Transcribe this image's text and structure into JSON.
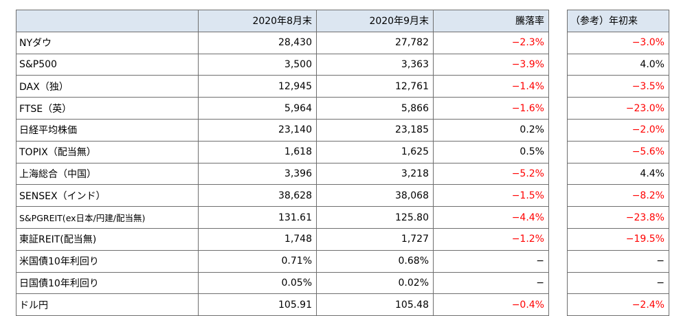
{
  "header": {
    "blank": "",
    "col1": "2020年8月末",
    "col2": "2020年9月末",
    "col3": "騰落率",
    "side": "（参考）年初来"
  },
  "rows": [
    {
      "name": "NYダウ",
      "aug": "28,430",
      "sep": "27,782",
      "change": "−2.3%",
      "ytd": "−3.0%"
    },
    {
      "name": "S&P500",
      "aug": "3,500",
      "sep": "3,363",
      "change": "−3.9%",
      "ytd": "4.0%"
    },
    {
      "name": "DAX（独）",
      "aug": "12,945",
      "sep": "12,761",
      "change": "−1.4%",
      "ytd": "−3.5%"
    },
    {
      "name": "FTSE（英）",
      "aug": "5,964",
      "sep": "5,866",
      "change": "−1.6%",
      "ytd": "−23.0%"
    },
    {
      "name": "日経平均株価",
      "aug": "23,140",
      "sep": "23,185",
      "change": "0.2%",
      "ytd": "−2.0%"
    },
    {
      "name": "TOPIX（配当無）",
      "aug": "1,618",
      "sep": "1,625",
      "change": "0.5%",
      "ytd": "−5.6%"
    },
    {
      "name": "上海総合（中国）",
      "aug": "3,396",
      "sep": "3,218",
      "change": "−5.2%",
      "ytd": "4.4%"
    },
    {
      "name": "SENSEX（インド）",
      "aug": "38,628",
      "sep": "38,068",
      "change": "−1.5%",
      "ytd": "−8.2%"
    },
    {
      "name": "S&PGREIT(ex日本/円建/配当無)",
      "aug": "131.61",
      "sep": "125.80",
      "change": "−4.4%",
      "ytd": "−23.8%"
    },
    {
      "name": "東証REIT(配当無)",
      "aug": "1,748",
      "sep": "1,727",
      "change": "−1.2%",
      "ytd": "−19.5%"
    },
    {
      "name": "米国債10年利回り",
      "aug": "0.71%",
      "sep": "0.68%",
      "change": "−",
      "ytd": "−"
    },
    {
      "name": "日国債10年利回り",
      "aug": "0.05%",
      "sep": "0.02%",
      "change": "−",
      "ytd": "−"
    },
    {
      "name": "ドル円",
      "aug": "105.91",
      "sep": "105.48",
      "change": "−0.4%",
      "ytd": "−2.4%"
    }
  ],
  "colors": {
    "header_bg": "#dce6f1",
    "negative": "#ff0000",
    "border": "#6e6e6e"
  }
}
